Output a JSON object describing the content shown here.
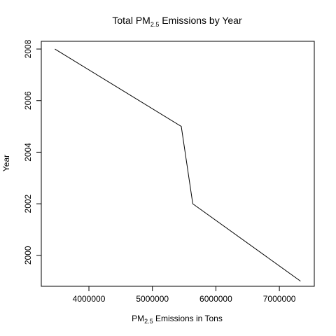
{
  "chart_data": {
    "type": "line",
    "title": {
      "prefix": "Total PM",
      "subscript": "2.5",
      "suffix": " Emissions by Year"
    },
    "xlabel": {
      "prefix": "PM",
      "subscript": "2.5",
      "suffix": " Emissions in Tons"
    },
    "ylabel": "Year",
    "xlim": [
      3250000,
      7550000
    ],
    "ylim": [
      1998.8,
      2008.3
    ],
    "x_ticks": [
      4000000,
      5000000,
      6000000,
      7000000
    ],
    "x_tick_labels": [
      "4000000",
      "5000000",
      "6000000",
      "7000000"
    ],
    "y_ticks": [
      2000,
      2002,
      2004,
      2006,
      2008
    ],
    "y_tick_labels": [
      "2000",
      "2002",
      "2004",
      "2006",
      "2008"
    ],
    "grid": false,
    "series": [
      {
        "x": [
          7332967,
          5635780,
          5454703,
          3464206
        ],
        "y": [
          1999,
          2002,
          2005,
          2008
        ],
        "color": "#000000"
      }
    ]
  }
}
